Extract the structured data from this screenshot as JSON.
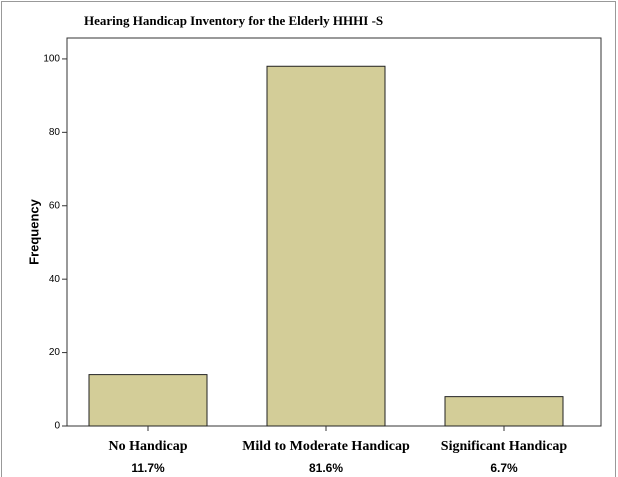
{
  "chart_data": {
    "type": "bar",
    "title": "Hearing Handicap Inventory for the Elderly HHHI -S",
    "y_label": "Frequency",
    "categories": [
      "No Handicap",
      "Mild to Moderate Handicap",
      "Significant Handicap"
    ],
    "category_percentages": [
      "11.7%",
      "81.6%",
      "6.7%"
    ],
    "values": [
      14,
      98,
      8
    ],
    "color": "#d3cd98",
    "ylim": [
      0,
      105.7
    ],
    "yticks": [
      0,
      20,
      40,
      60,
      80,
      100
    ]
  }
}
